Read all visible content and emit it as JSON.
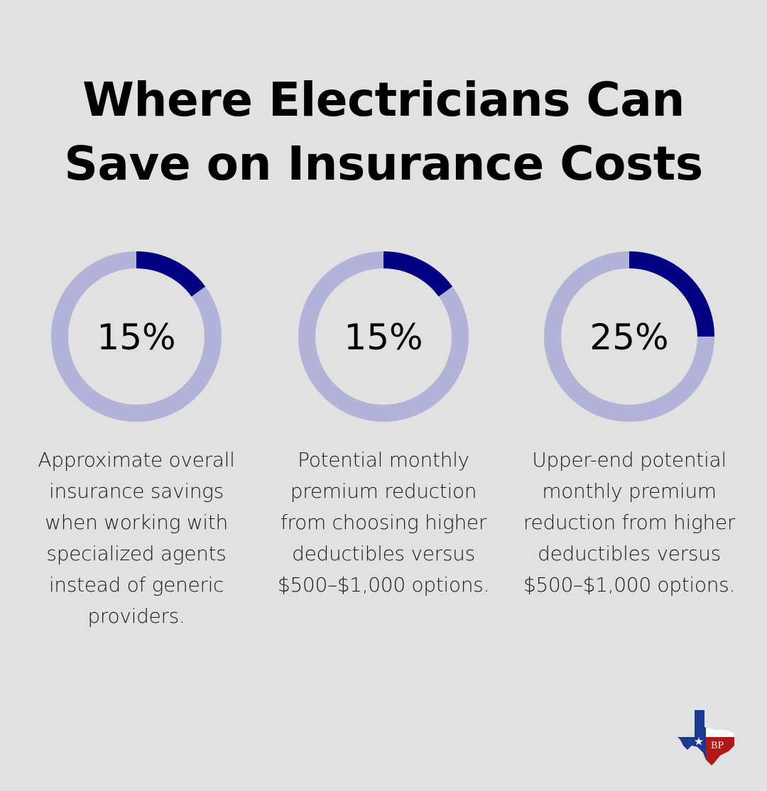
{
  "title": {
    "line1": "Where Electricians Can",
    "line2": "Save on Insurance Costs"
  },
  "colors": {
    "background": "#e0e1e0",
    "ring_fill": "#000080",
    "ring_track": "#b3b3da"
  },
  "chart_data": {
    "type": "donut",
    "title": "Where Electricians Can Save on Insurance Costs",
    "max": 100,
    "items": [
      {
        "value": 15,
        "label": "15%",
        "description": "Approximate overall insurance savings when working with specialized agents instead of generic providers."
      },
      {
        "value": 15,
        "label": "15%",
        "description": "Potential monthly premium reduction from choosing higher deductibles versus $500–$1,000 options."
      },
      {
        "value": 25,
        "label": "25%",
        "description": "Upper-end potential monthly premium reduction from higher deductibles versus $500–$1,000 options."
      }
    ]
  },
  "logo": {
    "icon": "texas-flag-map-icon",
    "monogram": "BP"
  }
}
